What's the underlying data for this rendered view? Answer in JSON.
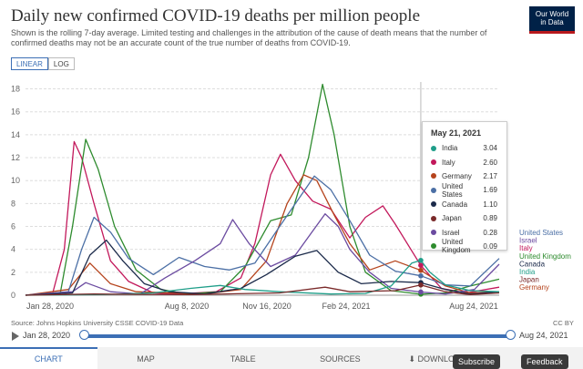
{
  "header": {
    "title": "Daily new confirmed COVID-19 deaths per million people",
    "subtitle": "Shown is the rolling 7-day average. Limited testing and challenges in the attribution of the cause of death means that the number of confirmed deaths may not be an accurate count of the true number of deaths from COVID-19.",
    "logo_line1": "Our World",
    "logo_line2": "in Data"
  },
  "scale_toggle": {
    "linear": "LINEAR",
    "log": "LOG",
    "selected": "linear"
  },
  "tooltip": {
    "date": "May 21, 2021",
    "rows": [
      {
        "name": "India",
        "value": "3.04",
        "color": "#1f9e89"
      },
      {
        "name": "Italy",
        "value": "2.60",
        "color": "#c2185b"
      },
      {
        "name": "Germany",
        "value": "2.17",
        "color": "#b5431c"
      },
      {
        "name": "United States",
        "value": "1.69",
        "color": "#4b6fa5"
      },
      {
        "name": "Canada",
        "value": "1.10",
        "color": "#1b2a4a"
      },
      {
        "name": "Japan",
        "value": "0.89",
        "color": "#7a2a2a"
      },
      {
        "name": "Israel",
        "value": "0.28",
        "color": "#6b4ba0"
      },
      {
        "name": "United Kingdom",
        "value": "0.09",
        "color": "#2e8b2e"
      }
    ]
  },
  "chart_data": {
    "type": "line",
    "y_ticks": [
      0,
      2,
      4,
      6,
      8,
      10,
      12,
      14,
      16,
      18
    ],
    "ylim": [
      0,
      18.6
    ],
    "x_ticks": [
      "Jan 28, 2020",
      "Aug 8, 2020",
      "Nov 16, 2020",
      "Feb 24, 2021",
      "Aug 24, 2021"
    ],
    "x_range": [
      "2020-01-28",
      "2021-08-24"
    ],
    "hover_date": "2021-05-21",
    "grid": true,
    "series": [
      {
        "name": "Italy",
        "color": "#c2185b",
        "label_order": 2,
        "points": [
          [
            "2020-01-28",
            0
          ],
          [
            "2020-03-01",
            0.2
          ],
          [
            "2020-03-15",
            4
          ],
          [
            "2020-03-27",
            13.4
          ],
          [
            "2020-04-05",
            12
          ],
          [
            "2020-04-20",
            8
          ],
          [
            "2020-05-10",
            3
          ],
          [
            "2020-06-01",
            1.2
          ],
          [
            "2020-07-01",
            0.2
          ],
          [
            "2020-08-01",
            0.1
          ],
          [
            "2020-09-15",
            0.3
          ],
          [
            "2020-10-15",
            1.5
          ],
          [
            "2020-11-01",
            4.5
          ],
          [
            "2020-11-20",
            10.5
          ],
          [
            "2020-12-02",
            12.3
          ],
          [
            "2020-12-20",
            10
          ],
          [
            "2021-01-10",
            8.2
          ],
          [
            "2021-02-01",
            7.5
          ],
          [
            "2021-02-24",
            5
          ],
          [
            "2021-03-15",
            6.8
          ],
          [
            "2021-04-05",
            7.8
          ],
          [
            "2021-04-20",
            6.2
          ],
          [
            "2021-05-21",
            2.6
          ],
          [
            "2021-06-15",
            0.6
          ],
          [
            "2021-07-15",
            0.2
          ],
          [
            "2021-08-24",
            0.7
          ]
        ]
      },
      {
        "name": "United Kingdom",
        "color": "#2e8b2e",
        "label_order": 3,
        "points": [
          [
            "2020-01-28",
            0
          ],
          [
            "2020-03-10",
            0.1
          ],
          [
            "2020-03-25",
            6
          ],
          [
            "2020-04-10",
            13.6
          ],
          [
            "2020-04-25",
            11
          ],
          [
            "2020-05-15",
            6
          ],
          [
            "2020-06-10",
            2.2
          ],
          [
            "2020-07-10",
            0.5
          ],
          [
            "2020-08-10",
            0.1
          ],
          [
            "2020-09-20",
            0.3
          ],
          [
            "2020-10-20",
            2.5
          ],
          [
            "2020-11-20",
            6.5
          ],
          [
            "2020-12-15",
            7
          ],
          [
            "2021-01-05",
            12
          ],
          [
            "2021-01-22",
            18.4
          ],
          [
            "2021-02-05",
            14
          ],
          [
            "2021-02-24",
            6
          ],
          [
            "2021-03-15",
            2
          ],
          [
            "2021-04-15",
            0.4
          ],
          [
            "2021-05-21",
            0.09
          ],
          [
            "2021-06-20",
            0.2
          ],
          [
            "2021-07-20",
            0.8
          ],
          [
            "2021-08-24",
            1.4
          ]
        ]
      },
      {
        "name": "Germany",
        "color": "#b5431c",
        "label_order": 7,
        "points": [
          [
            "2020-01-28",
            0
          ],
          [
            "2020-03-20",
            0.5
          ],
          [
            "2020-04-15",
            2.8
          ],
          [
            "2020-05-10",
            1
          ],
          [
            "2020-06-10",
            0.3
          ],
          [
            "2020-09-01",
            0.1
          ],
          [
            "2020-10-15",
            0.5
          ],
          [
            "2020-11-15",
            3
          ],
          [
            "2020-12-10",
            8
          ],
          [
            "2020-12-30",
            10.5
          ],
          [
            "2021-01-15",
            10
          ],
          [
            "2021-02-05",
            7
          ],
          [
            "2021-02-24",
            4.5
          ],
          [
            "2021-03-20",
            2.2
          ],
          [
            "2021-04-20",
            3
          ],
          [
            "2021-05-21",
            2.17
          ],
          [
            "2021-06-20",
            0.8
          ],
          [
            "2021-07-20",
            0.2
          ],
          [
            "2021-08-24",
            0.3
          ]
        ]
      },
      {
        "name": "United States",
        "color": "#4b6fa5",
        "label_order": 0,
        "points": [
          [
            "2020-01-28",
            0
          ],
          [
            "2020-03-20",
            0.3
          ],
          [
            "2020-04-05",
            4
          ],
          [
            "2020-04-20",
            6.8
          ],
          [
            "2020-05-10",
            5.5
          ],
          [
            "2020-06-01",
            3.2
          ],
          [
            "2020-07-01",
            1.8
          ],
          [
            "2020-08-01",
            3.3
          ],
          [
            "2020-09-01",
            2.5
          ],
          [
            "2020-10-01",
            2.2
          ],
          [
            "2020-11-01",
            2.8
          ],
          [
            "2020-12-01",
            6
          ],
          [
            "2021-01-12",
            10.4
          ],
          [
            "2021-02-01",
            9.2
          ],
          [
            "2021-02-24",
            6.5
          ],
          [
            "2021-03-20",
            3.5
          ],
          [
            "2021-04-20",
            2.1
          ],
          [
            "2021-05-21",
            1.69
          ],
          [
            "2021-06-20",
            0.9
          ],
          [
            "2021-07-20",
            0.8
          ],
          [
            "2021-08-24",
            3.2
          ]
        ]
      },
      {
        "name": "Israel",
        "color": "#6b4ba0",
        "label_order": 1,
        "points": [
          [
            "2020-01-28",
            0
          ],
          [
            "2020-03-25",
            0.3
          ],
          [
            "2020-04-10",
            1.1
          ],
          [
            "2020-05-10",
            0.3
          ],
          [
            "2020-06-15",
            0.1
          ],
          [
            "2020-07-15",
            1.5
          ],
          [
            "2020-08-20",
            3
          ],
          [
            "2020-09-20",
            4.5
          ],
          [
            "2020-10-05",
            6.6
          ],
          [
            "2020-10-25",
            4.5
          ],
          [
            "2020-11-20",
            2.5
          ],
          [
            "2020-12-20",
            3.5
          ],
          [
            "2021-01-25",
            7.1
          ],
          [
            "2021-02-10",
            6
          ],
          [
            "2021-02-24",
            4
          ],
          [
            "2021-03-20",
            2
          ],
          [
            "2021-04-15",
            0.6
          ],
          [
            "2021-05-21",
            0.28
          ],
          [
            "2021-06-20",
            0.1
          ],
          [
            "2021-07-25",
            0.5
          ],
          [
            "2021-08-24",
            2.7
          ]
        ]
      },
      {
        "name": "Canada",
        "color": "#1b2a4a",
        "label_order": 4,
        "points": [
          [
            "2020-01-28",
            0
          ],
          [
            "2020-03-25",
            0.2
          ],
          [
            "2020-04-15",
            3.5
          ],
          [
            "2020-05-05",
            4.8
          ],
          [
            "2020-05-25",
            3
          ],
          [
            "2020-06-20",
            1
          ],
          [
            "2020-07-20",
            0.3
          ],
          [
            "2020-09-01",
            0.1
          ],
          [
            "2020-10-15",
            0.6
          ],
          [
            "2020-11-15",
            1.8
          ],
          [
            "2020-12-20",
            3.4
          ],
          [
            "2021-01-15",
            3.9
          ],
          [
            "2021-02-10",
            2
          ],
          [
            "2021-03-10",
            1
          ],
          [
            "2021-04-15",
            1.2
          ],
          [
            "2021-05-21",
            1.1
          ],
          [
            "2021-06-20",
            0.5
          ],
          [
            "2021-07-20",
            0.1
          ],
          [
            "2021-08-24",
            0.3
          ]
        ]
      },
      {
        "name": "India",
        "color": "#1f9e89",
        "label_order": 5,
        "points": [
          [
            "2020-01-28",
            0
          ],
          [
            "2020-05-01",
            0.05
          ],
          [
            "2020-07-01",
            0.2
          ],
          [
            "2020-08-15",
            0.6
          ],
          [
            "2020-09-20",
            0.85
          ],
          [
            "2020-10-20",
            0.5
          ],
          [
            "2020-12-01",
            0.3
          ],
          [
            "2021-02-01",
            0.1
          ],
          [
            "2021-03-15",
            0.15
          ],
          [
            "2021-04-15",
            0.8
          ],
          [
            "2021-05-10",
            2.8
          ],
          [
            "2021-05-21",
            3.04
          ],
          [
            "2021-06-01",
            2
          ],
          [
            "2021-06-20",
            0.9
          ],
          [
            "2021-07-20",
            0.4
          ],
          [
            "2021-08-24",
            0.3
          ]
        ]
      },
      {
        "name": "Japan",
        "color": "#7a2a2a",
        "label_order": 6,
        "points": [
          [
            "2020-01-28",
            0
          ],
          [
            "2020-04-20",
            0.1
          ],
          [
            "2020-08-15",
            0.05
          ],
          [
            "2020-12-01",
            0.2
          ],
          [
            "2021-01-25",
            0.7
          ],
          [
            "2021-02-24",
            0.3
          ],
          [
            "2021-04-20",
            0.4
          ],
          [
            "2021-05-21",
            0.89
          ],
          [
            "2021-06-20",
            0.3
          ],
          [
            "2021-07-20",
            0.05
          ],
          [
            "2021-08-24",
            0.2
          ]
        ]
      }
    ]
  },
  "footer": {
    "source": "Source: Johns Hopkins University CSSE COVID-19 Data",
    "license": "CC BY",
    "timeline_start": "Jan 28, 2020",
    "timeline_end": "Aug 24, 2021"
  },
  "tabs": [
    {
      "label": "CHART",
      "active": true
    },
    {
      "label": "MAP",
      "active": false
    },
    {
      "label": "TABLE",
      "active": false
    },
    {
      "label": "SOURCES",
      "active": false
    },
    {
      "label": "⬇ DOWNLOAD",
      "active": false
    },
    {
      "label": "",
      "active": false
    }
  ],
  "buttons": {
    "subscribe": "Subscribe",
    "feedback": "Feedback"
  }
}
